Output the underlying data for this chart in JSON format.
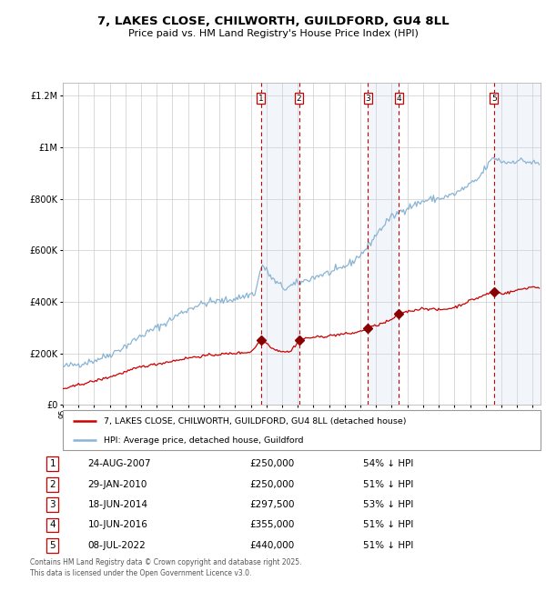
{
  "title": "7, LAKES CLOSE, CHILWORTH, GUILDFORD, GU4 8LL",
  "subtitle": "Price paid vs. HM Land Registry's House Price Index (HPI)",
  "legend_red": "7, LAKES CLOSE, CHILWORTH, GUILDFORD, GU4 8LL (detached house)",
  "legend_blue": "HPI: Average price, detached house, Guildford",
  "footnote": "Contains HM Land Registry data © Crown copyright and database right 2025.\nThis data is licensed under the Open Government Licence v3.0.",
  "transactions": [
    {
      "num": 1,
      "date": "24-AUG-2007",
      "price": 250000,
      "pct": "54% ↓ HPI",
      "date_val": 2007.648
    },
    {
      "num": 2,
      "date": "29-JAN-2010",
      "price": 250000,
      "pct": "51% ↓ HPI",
      "date_val": 2010.08
    },
    {
      "num": 3,
      "date": "18-JUN-2014",
      "price": 297500,
      "pct": "53% ↓ HPI",
      "date_val": 2014.463
    },
    {
      "num": 4,
      "date": "10-JUN-2016",
      "price": 355000,
      "pct": "51% ↓ HPI",
      "date_val": 2016.441
    },
    {
      "num": 5,
      "date": "08-JUL-2022",
      "price": 440000,
      "pct": "51% ↓ HPI",
      "date_val": 2022.519
    }
  ],
  "hpi_color": "#8ab4d4",
  "price_color": "#cc0000",
  "marker_color": "#880000",
  "shade_color": "#ccdded",
  "background_color": "#ffffff",
  "grid_color": "#cccccc",
  "ylim": [
    0,
    1250000
  ],
  "xlim_start": 1995.0,
  "xlim_end": 2025.5,
  "hpi_keypoints": [
    [
      1995.0,
      148000
    ],
    [
      1996.0,
      158000
    ],
    [
      1997.0,
      172000
    ],
    [
      1998.0,
      195000
    ],
    [
      1999.0,
      228000
    ],
    [
      2000.0,
      268000
    ],
    [
      2001.0,
      300000
    ],
    [
      2001.5,
      315000
    ],
    [
      2002.5,
      355000
    ],
    [
      2003.5,
      385000
    ],
    [
      2004.5,
      400000
    ],
    [
      2005.5,
      405000
    ],
    [
      2006.5,
      420000
    ],
    [
      2007.3,
      435000
    ],
    [
      2007.7,
      545000
    ],
    [
      2008.5,
      480000
    ],
    [
      2009.2,
      450000
    ],
    [
      2009.7,
      465000
    ],
    [
      2010.2,
      475000
    ],
    [
      2010.8,
      490000
    ],
    [
      2011.5,
      505000
    ],
    [
      2012.5,
      520000
    ],
    [
      2013.5,
      555000
    ],
    [
      2014.3,
      600000
    ],
    [
      2015.0,
      660000
    ],
    [
      2015.8,
      720000
    ],
    [
      2016.3,
      740000
    ],
    [
      2016.8,
      760000
    ],
    [
      2017.5,
      778000
    ],
    [
      2018.0,
      790000
    ],
    [
      2018.5,
      798000
    ],
    [
      2019.0,
      800000
    ],
    [
      2019.5,
      808000
    ],
    [
      2020.0,
      818000
    ],
    [
      2020.5,
      835000
    ],
    [
      2021.0,
      855000
    ],
    [
      2021.5,
      875000
    ],
    [
      2022.0,
      920000
    ],
    [
      2022.5,
      960000
    ],
    [
      2023.0,
      945000
    ],
    [
      2023.5,
      940000
    ],
    [
      2024.0,
      950000
    ],
    [
      2024.5,
      945000
    ],
    [
      2025.4,
      935000
    ]
  ],
  "price_keypoints": [
    [
      1995.0,
      62000
    ],
    [
      1995.5,
      68000
    ],
    [
      1996.0,
      78000
    ],
    [
      1997.0,
      92000
    ],
    [
      1998.0,
      108000
    ],
    [
      1999.0,
      128000
    ],
    [
      2000.0,
      148000
    ],
    [
      2001.0,
      158000
    ],
    [
      2002.0,
      170000
    ],
    [
      2003.0,
      182000
    ],
    [
      2004.0,
      190000
    ],
    [
      2005.0,
      196000
    ],
    [
      2006.0,
      200000
    ],
    [
      2007.0,
      205000
    ],
    [
      2007.648,
      250000
    ],
    [
      2008.0,
      240000
    ],
    [
      2008.5,
      215000
    ],
    [
      2009.0,
      208000
    ],
    [
      2009.5,
      205000
    ],
    [
      2010.08,
      250000
    ],
    [
      2010.5,
      258000
    ],
    [
      2011.0,
      262000
    ],
    [
      2011.5,
      264000
    ],
    [
      2012.0,
      268000
    ],
    [
      2012.5,
      272000
    ],
    [
      2013.0,
      275000
    ],
    [
      2013.5,
      278000
    ],
    [
      2014.0,
      285000
    ],
    [
      2014.463,
      297500
    ],
    [
      2015.0,
      308000
    ],
    [
      2015.5,
      318000
    ],
    [
      2016.0,
      330000
    ],
    [
      2016.441,
      355000
    ],
    [
      2017.0,
      362000
    ],
    [
      2017.5,
      368000
    ],
    [
      2018.0,
      375000
    ],
    [
      2018.5,
      372000
    ],
    [
      2019.0,
      368000
    ],
    [
      2019.5,
      372000
    ],
    [
      2020.0,
      378000
    ],
    [
      2020.5,
      390000
    ],
    [
      2021.0,
      405000
    ],
    [
      2021.5,
      415000
    ],
    [
      2022.0,
      428000
    ],
    [
      2022.519,
      440000
    ],
    [
      2023.0,
      432000
    ],
    [
      2023.5,
      436000
    ],
    [
      2024.0,
      445000
    ],
    [
      2024.5,
      452000
    ],
    [
      2025.0,
      458000
    ],
    [
      2025.4,
      455000
    ]
  ]
}
